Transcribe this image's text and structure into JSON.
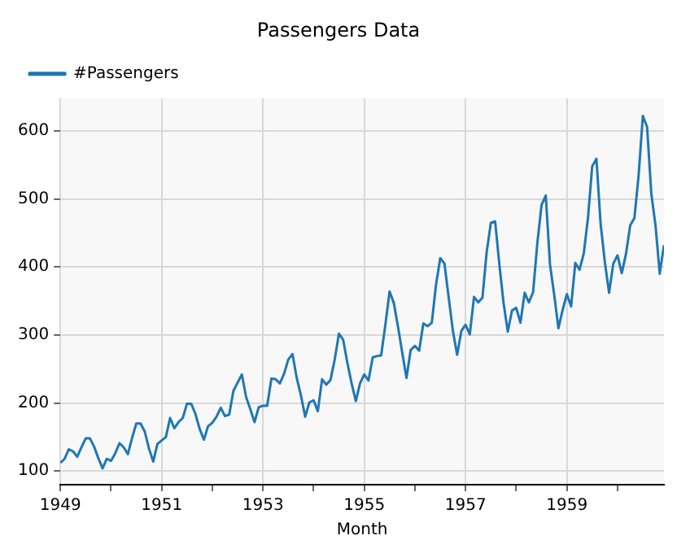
{
  "chart_data": {
    "type": "line",
    "title": "Passengers Data",
    "xlabel": "Month",
    "x": [
      "1949-01",
      "1949-02",
      "1949-03",
      "1949-04",
      "1949-05",
      "1949-06",
      "1949-07",
      "1949-08",
      "1949-09",
      "1949-10",
      "1949-11",
      "1949-12",
      "1950-01",
      "1950-02",
      "1950-03",
      "1950-04",
      "1950-05",
      "1950-06",
      "1950-07",
      "1950-08",
      "1950-09",
      "1950-10",
      "1950-11",
      "1950-12",
      "1951-01",
      "1951-02",
      "1951-03",
      "1951-04",
      "1951-05",
      "1951-06",
      "1951-07",
      "1951-08",
      "1951-09",
      "1951-10",
      "1951-11",
      "1951-12",
      "1952-01",
      "1952-02",
      "1952-03",
      "1952-04",
      "1952-05",
      "1952-06",
      "1952-07",
      "1952-08",
      "1952-09",
      "1952-10",
      "1952-11",
      "1952-12",
      "1953-01",
      "1953-02",
      "1953-03",
      "1953-04",
      "1953-05",
      "1953-06",
      "1953-07",
      "1953-08",
      "1953-09",
      "1953-10",
      "1953-11",
      "1953-12",
      "1954-01",
      "1954-02",
      "1954-03",
      "1954-04",
      "1954-05",
      "1954-06",
      "1954-07",
      "1954-08",
      "1954-09",
      "1954-10",
      "1954-11",
      "1954-12",
      "1955-01",
      "1955-02",
      "1955-03",
      "1955-04",
      "1955-05",
      "1955-06",
      "1955-07",
      "1955-08",
      "1955-09",
      "1955-10",
      "1955-11",
      "1955-12",
      "1956-01",
      "1956-02",
      "1956-03",
      "1956-04",
      "1956-05",
      "1956-06",
      "1956-07",
      "1956-08",
      "1956-09",
      "1956-10",
      "1956-11",
      "1956-12",
      "1957-01",
      "1957-02",
      "1957-03",
      "1957-04",
      "1957-05",
      "1957-06",
      "1957-07",
      "1957-08",
      "1957-09",
      "1957-10",
      "1957-11",
      "1957-12",
      "1958-01",
      "1958-02",
      "1958-03",
      "1958-04",
      "1958-05",
      "1958-06",
      "1958-07",
      "1958-08",
      "1958-09",
      "1958-10",
      "1958-11",
      "1958-12",
      "1959-01",
      "1959-02",
      "1959-03",
      "1959-04",
      "1959-05",
      "1959-06",
      "1959-07",
      "1959-08",
      "1959-09",
      "1959-10",
      "1959-11",
      "1959-12",
      "1960-01",
      "1960-02",
      "1960-03",
      "1960-04",
      "1960-05",
      "1960-06",
      "1960-07",
      "1960-08",
      "1960-09",
      "1960-10",
      "1960-11",
      "1960-12"
    ],
    "series": [
      {
        "name": "#Passengers",
        "color": "#1f77b4",
        "values": [
          112,
          118,
          132,
          129,
          121,
          135,
          148,
          148,
          136,
          119,
          104,
          118,
          115,
          126,
          141,
          135,
          125,
          149,
          170,
          170,
          158,
          133,
          114,
          140,
          145,
          150,
          178,
          163,
          172,
          178,
          199,
          199,
          184,
          162,
          146,
          166,
          171,
          180,
          193,
          181,
          183,
          218,
          230,
          242,
          209,
          191,
          172,
          194,
          196,
          196,
          236,
          235,
          229,
          243,
          264,
          272,
          237,
          211,
          180,
          201,
          204,
          188,
          235,
          227,
          234,
          264,
          302,
          293,
          259,
          229,
          203,
          229,
          242,
          233,
          267,
          269,
          270,
          315,
          364,
          347,
          312,
          274,
          237,
          278,
          284,
          277,
          317,
          313,
          318,
          374,
          413,
          405,
          355,
          306,
          271,
          306,
          315,
          301,
          356,
          348,
          355,
          422,
          465,
          467,
          404,
          347,
          305,
          336,
          340,
          318,
          362,
          348,
          363,
          435,
          491,
          505,
          404,
          359,
          310,
          337,
          360,
          342,
          406,
          396,
          420,
          472,
          548,
          559,
          463,
          407,
          362,
          405,
          417,
          391,
          419,
          461,
          472,
          535,
          622,
          606,
          508,
          461,
          390,
          432
        ]
      }
    ],
    "xlim": [
      "1949-01",
      "1960-12"
    ],
    "xticks": [
      {
        "value": "1949",
        "label": "1949"
      },
      {
        "value": "1950",
        "label": null
      },
      {
        "value": "1951",
        "label": "1951"
      },
      {
        "value": "1952",
        "label": null
      },
      {
        "value": "1953",
        "label": "1953"
      },
      {
        "value": "1954",
        "label": null
      },
      {
        "value": "1955",
        "label": "1955"
      },
      {
        "value": "1956",
        "label": null
      },
      {
        "value": "1957",
        "label": "1957"
      },
      {
        "value": "1958",
        "label": null
      },
      {
        "value": "1959",
        "label": "1959"
      },
      {
        "value": "1960",
        "label": null
      }
    ],
    "ylim": [
      80,
      648
    ],
    "yticks": [
      100,
      200,
      300,
      400,
      500,
      600
    ],
    "grid": true,
    "legend": "top left",
    "marker": "none",
    "line_style": "solid"
  }
}
